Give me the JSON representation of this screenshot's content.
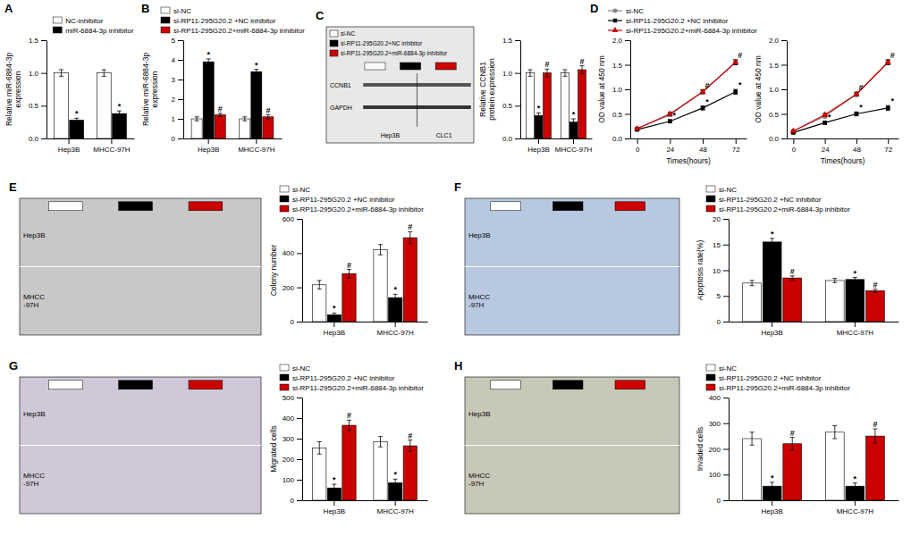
{
  "chart_data": [
    {
      "type": "bar",
      "title": "A",
      "legend": "upper right",
      "categories": [
        "Hep3B",
        "MHCC-97H"
      ],
      "series": [
        {
          "name": "NC-inhibitor",
          "color": "white",
          "values": [
            1.0,
            1.0
          ],
          "errors": [
            0.05,
            0.05
          ]
        },
        {
          "name": "miR-6884-3p inhibitor",
          "color": "black",
          "values": [
            0.28,
            0.38
          ],
          "errors": [
            0.03,
            0.04
          ],
          "annotations": [
            "*",
            "*"
          ]
        }
      ],
      "ylabel": "Relative miR-6884-3p\nexpression",
      "ylim": [
        0,
        1.5
      ],
      "yticks": [
        {
          "value": 0,
          "label": "0.0"
        },
        0.5,
        {
          "value": 1,
          "label": "1.0"
        },
        1.5
      ]
    },
    {
      "type": "bar",
      "title": "B",
      "legend": "upper left",
      "categories": [
        "Hep3B",
        "MHCC-97H"
      ],
      "series": [
        {
          "name": "si-NC",
          "color": "white",
          "values": [
            1.0,
            1.0
          ],
          "errors": [
            0.1,
            0.1
          ]
        },
        {
          "name": "si-RP11-295G20.2 +NC inhibitor",
          "color": "black",
          "values": [
            3.9,
            3.4
          ],
          "errors": [
            0.15,
            0.12
          ],
          "annotations": [
            "*",
            "*"
          ]
        },
        {
          "name": "si-RP11-295G20.2+miR-6884-3p inhibitor",
          "color": "#cc0000",
          "values": [
            1.2,
            1.1
          ],
          "errors": [
            0.08,
            0.1
          ],
          "annotations": [
            "#",
            "#"
          ]
        }
      ],
      "ylabel": "Relative miR-6884-3p\nexpression",
      "ylim": [
        0,
        5
      ],
      "yticks": [
        0,
        1,
        2,
        3,
        4,
        5
      ]
    },
    {
      "type": "blot",
      "title": "C",
      "color": "#e8e8e8",
      "series": [
        {
          "name": "si-NC",
          "color": "white"
        },
        {
          "name": "si-RP11-295G20.2+NC inhibitor",
          "color": "black"
        },
        {
          "name": "si-RP11-295G20.2+miR-6884-3p inhibitor",
          "color": "#cc0000"
        }
      ],
      "categories": [
        "Hep3B",
        "CLC1"
      ],
      "annotations": [
        "CCNB1",
        "GAPDH"
      ]
    },
    {
      "type": "bar",
      "categories": [
        "Hep3B",
        "MHCC-97H"
      ],
      "series": [
        {
          "color": "white",
          "values": [
            1.0,
            1.0
          ],
          "errors": [
            0.05,
            0.05
          ]
        },
        {
          "color": "black",
          "values": [
            0.35,
            0.25
          ],
          "errors": [
            0.04,
            0.05
          ],
          "annotations": [
            "*",
            "*"
          ]
        },
        {
          "color": "#cc0000",
          "values": [
            1.0,
            1.05
          ],
          "errors": [
            0.06,
            0.06
          ],
          "annotations": [
            "#",
            "#"
          ]
        }
      ],
      "ylabel": "Relative CCNB1\nprotein expression",
      "ylim": [
        0,
        1.5
      ],
      "yticks": [
        {
          "value": 0,
          "label": "0.0"
        },
        0.5,
        {
          "value": 1,
          "label": "1.0"
        },
        1.5
      ]
    },
    {
      "type": "line",
      "title": "D",
      "legend": "upper left",
      "x": [
        0,
        24,
        48,
        72
      ],
      "xlim": [
        -5,
        80
      ],
      "xticks": [
        0,
        24,
        48,
        72
      ],
      "xlabel": "Times(hours)",
      "ylabel": "OD value at 450 nm",
      "ylim": [
        0,
        2.0
      ],
      "yticks": [
        {
          "value": 0,
          "label": "0.0"
        },
        0.5,
        {
          "value": 1,
          "label": "1.0"
        },
        1.5,
        {
          "value": 2,
          "label": "2.0"
        }
      ],
      "series": [
        {
          "name": "si-NC",
          "color": "#888888",
          "marker": "circle",
          "values": [
            0.2,
            0.48,
            0.95,
            1.55
          ],
          "errors": [
            0.02,
            0.03,
            0.04,
            0.05
          ]
        },
        {
          "name": "si-RP11-295G20.2 +NC inhibitor",
          "color": "black",
          "marker": "square",
          "values": [
            0.18,
            0.35,
            0.62,
            0.95
          ],
          "errors": [
            0.02,
            0.03,
            0.04,
            0.05
          ],
          "annotations": [
            null,
            "*",
            "*",
            "*"
          ]
        },
        {
          "name": "si-RP11-295G20.2+miR-6884-3p inhibitor",
          "color": "#cc0000",
          "marker": "triangle",
          "values": [
            0.2,
            0.5,
            0.95,
            1.55
          ],
          "errors": [
            0.02,
            0.03,
            0.04,
            0.05
          ],
          "annotations": [
            null,
            null,
            "#",
            "#"
          ]
        }
      ]
    },
    {
      "type": "line",
      "x": [
        0,
        24,
        48,
        72
      ],
      "xlim": [
        -5,
        80
      ],
      "xticks": [
        0,
        24,
        48,
        72
      ],
      "xlabel": "Times(hours)",
      "ylabel": "OD value at 450 nm",
      "ylim": [
        0,
        2.0
      ],
      "yticks": [
        {
          "value": 0,
          "label": "0.0"
        },
        0.5,
        {
          "value": 1,
          "label": "1.0"
        },
        1.5,
        {
          "value": 2,
          "label": "2.0"
        }
      ],
      "series": [
        {
          "color": "#888888",
          "marker": "circle",
          "values": [
            0.15,
            0.45,
            0.9,
            1.55
          ],
          "errors": [
            0.02,
            0.03,
            0.04,
            0.05
          ]
        },
        {
          "color": "black",
          "marker": "square",
          "values": [
            0.12,
            0.32,
            0.5,
            0.62
          ],
          "errors": [
            0.02,
            0.03,
            0.04,
            0.05
          ],
          "annotations": [
            null,
            "*",
            "*",
            "*"
          ]
        },
        {
          "color": "#cc0000",
          "marker": "triangle",
          "values": [
            0.15,
            0.48,
            0.9,
            1.55
          ],
          "errors": [
            0.02,
            0.03,
            0.04,
            0.05
          ],
          "annotations": [
            null,
            null,
            "#",
            "#"
          ]
        }
      ]
    },
    {
      "type": "image",
      "title": "E",
      "color": "#c8c8c8",
      "colors": [
        "white",
        "black",
        "#cc0000"
      ],
      "annotations": [
        "Hep3B",
        "MHCC\n-97H"
      ]
    },
    {
      "type": "bar",
      "legend": "upper left",
      "categories": [
        "Hep3B",
        "MHCC-97H"
      ],
      "series": [
        {
          "name": "si-NC",
          "color": "white",
          "values": [
            215,
            420
          ],
          "errors": [
            25,
            30
          ]
        },
        {
          "name": "si-RP11-295G20.2 +NC inhibitor",
          "color": "black",
          "values": [
            40,
            140
          ],
          "errors": [
            10,
            20
          ],
          "annotations": [
            "*",
            "*"
          ]
        },
        {
          "name": "si-RP11-295G20.2+miR-6884-3p inhibitor",
          "color": "#cc0000",
          "values": [
            280,
            490
          ],
          "errors": [
            25,
            35
          ],
          "annotations": [
            "#",
            "#"
          ]
        }
      ],
      "ylabel": "Colony number",
      "ylim": [
        0,
        600
      ],
      "yticks": [
        0,
        200,
        400,
        600
      ]
    },
    {
      "type": "image",
      "title": "F",
      "color": "#b8c8e0",
      "colors": [
        "white",
        "black",
        "#cc0000"
      ],
      "annotations": [
        "Hep3B",
        "MHCC\n-97H"
      ]
    },
    {
      "type": "bar",
      "legend": "upper left",
      "categories": [
        "Hep3B",
        "MHCC-97H"
      ],
      "series": [
        {
          "name": "si-NC",
          "color": "white",
          "values": [
            7.5,
            8.0
          ],
          "errors": [
            0.5,
            0.4
          ]
        },
        {
          "name": "si-RP11-295G20.2 +NC inhibitor",
          "color": "black",
          "values": [
            15.5,
            8.2
          ],
          "errors": [
            0.7,
            0.4
          ],
          "annotations": [
            "*",
            "*"
          ]
        },
        {
          "name": "si-RP11-295G20.2+miR-6884-3p inhibitor",
          "color": "#cc0000",
          "values": [
            8.5,
            6.0
          ],
          "errors": [
            0.4,
            0.3
          ],
          "annotations": [
            "#",
            "#"
          ]
        }
      ],
      "ylabel": "Apoptosis rate(%)",
      "ylim": [
        0,
        20
      ],
      "yticks": [
        0,
        5,
        10,
        15,
        20
      ]
    },
    {
      "type": "image",
      "title": "G",
      "color": "#d0c8d8",
      "colors": [
        "white",
        "black",
        "#cc0000"
      ],
      "annotations": [
        "Hep3B",
        "MHCC\n-97H"
      ]
    },
    {
      "type": "bar",
      "legend": "upper left",
      "categories": [
        "Hep3B",
        "MHCC-97H"
      ],
      "series": [
        {
          "name": "si-NC",
          "color": "white",
          "values": [
            255,
            285
          ],
          "errors": [
            30,
            25
          ]
        },
        {
          "name": "si-RP11-295G20.2 +NC inhibitor",
          "color": "black",
          "values": [
            60,
            85
          ],
          "errors": [
            18,
            18
          ],
          "annotations": [
            "*",
            "*"
          ]
        },
        {
          "name": "si-RP11-295G20.2+miR-6884-3p inhibitor",
          "color": "#cc0000",
          "values": [
            365,
            265
          ],
          "errors": [
            25,
            28
          ],
          "annotations": [
            "#",
            "#"
          ]
        }
      ],
      "ylabel": "Migrated cells",
      "ylim": [
        0,
        500
      ],
      "yticks": [
        0,
        100,
        200,
        300,
        400,
        500
      ]
    },
    {
      "type": "image",
      "title": "H",
      "color": "#c8c8b8",
      "colors": [
        "white",
        "black",
        "#cc0000"
      ],
      "annotations": [
        "Hep3B",
        "MHCC\n-97H"
      ]
    },
    {
      "type": "bar",
      "legend": "upper left",
      "categories": [
        "Hep3B",
        "MHCC-97H"
      ],
      "series": [
        {
          "name": "si-NC",
          "color": "white",
          "values": [
            240,
            265
          ],
          "errors": [
            25,
            25
          ]
        },
        {
          "name": "si-RP11-295G20.2 +NC inhibitor",
          "color": "black",
          "values": [
            55,
            55
          ],
          "errors": [
            15,
            12
          ],
          "annotations": [
            "*",
            "*"
          ]
        },
        {
          "name": "si-RP11-295G20.2+miR-6884-3p inhibitor",
          "color": "#cc0000",
          "values": [
            220,
            250
          ],
          "errors": [
            25,
            28
          ],
          "annotations": [
            "#",
            "#"
          ]
        }
      ],
      "ylabel": "Invaded cells",
      "ylim": [
        0,
        400
      ],
      "yticks": [
        0,
        100,
        200,
        300,
        400
      ]
    }
  ]
}
